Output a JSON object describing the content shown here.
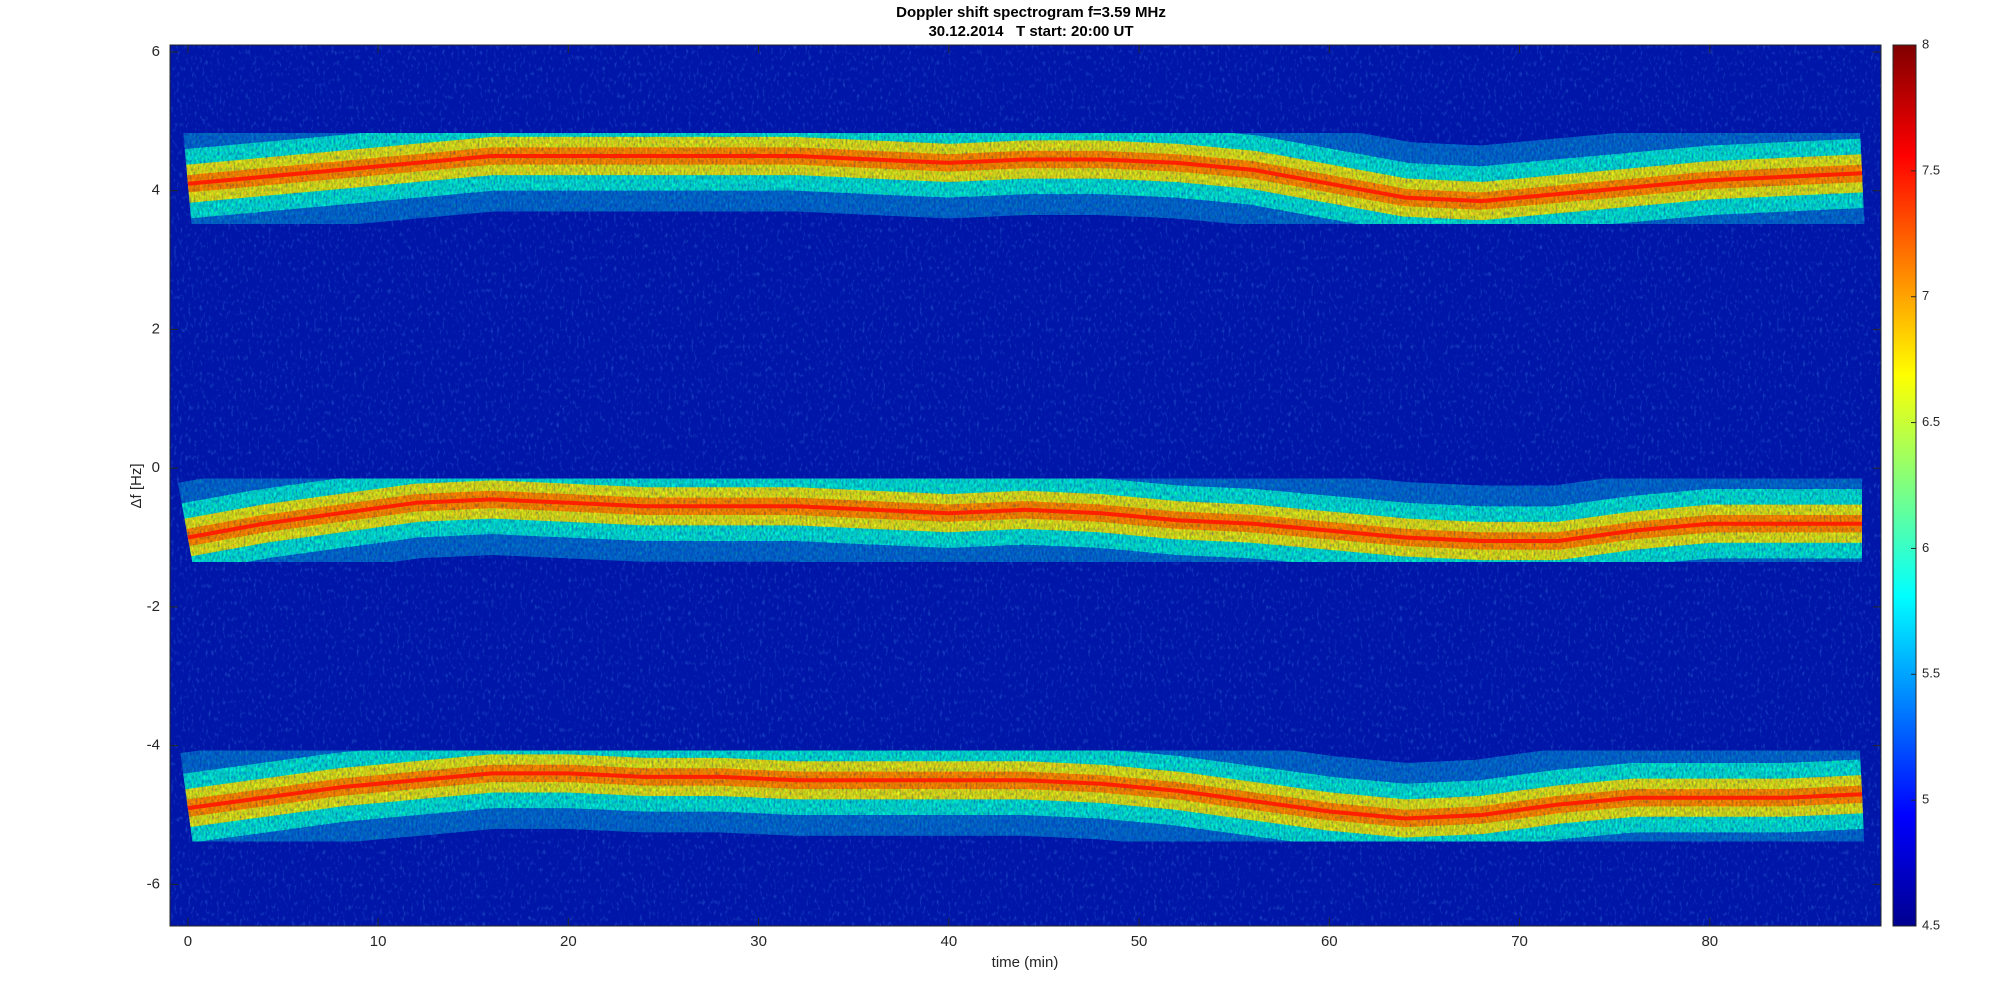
{
  "chart_data": {
    "type": "spectrogram",
    "title": "Doppler shift spectrogram f=3.59 MHz",
    "subtitle": "30.12.2014   T start: 20:00 UT",
    "x_label": "time (min)",
    "y_label": "Δf [Hz]",
    "x": [
      0,
      4,
      8,
      12,
      16,
      20,
      24,
      28,
      32,
      36,
      40,
      44,
      48,
      52,
      56,
      60,
      64,
      68,
      72,
      76,
      80,
      84,
      88
    ],
    "series": [
      {
        "color": "#ff2000",
        "values": [
          4.1,
          4.2,
          4.3,
          4.4,
          4.5,
          4.5,
          4.5,
          4.5,
          4.5,
          4.45,
          4.4,
          4.45,
          4.45,
          4.4,
          4.3,
          4.1,
          3.9,
          3.85,
          3.95,
          4.05,
          4.15,
          4.2,
          4.25
        ]
      },
      {
        "color": "#ff2000",
        "values": [
          -1.0,
          -0.8,
          -0.65,
          -0.5,
          -0.45,
          -0.5,
          -0.55,
          -0.55,
          -0.55,
          -0.6,
          -0.65,
          -0.6,
          -0.65,
          -0.75,
          -0.8,
          -0.9,
          -1.0,
          -1.05,
          -1.05,
          -0.9,
          -0.8,
          -0.8,
          -0.8
        ]
      },
      {
        "color": "#ff2000",
        "values": [
          -4.9,
          -4.75,
          -4.6,
          -4.5,
          -4.4,
          -4.4,
          -4.45,
          -4.45,
          -4.5,
          -4.5,
          -4.5,
          -4.5,
          -4.55,
          -4.65,
          -4.8,
          -4.95,
          -5.05,
          -5.0,
          -4.85,
          -4.75,
          -4.75,
          -4.75,
          -4.7
        ]
      }
    ],
    "xlim": [
      -0.94,
      89
    ],
    "ylim": [
      -6.6,
      6.1
    ],
    "xticks": [
      0,
      10,
      20,
      30,
      40,
      50,
      60,
      70,
      80
    ],
    "yticks": [
      -6,
      -4,
      -2,
      0,
      2,
      4,
      6
    ],
    "clim": [
      4.5,
      8
    ],
    "cticks": [
      4.5,
      5,
      5.5,
      6,
      6.5,
      7,
      7.5,
      8
    ],
    "colormap": "jet",
    "background": "#0016a8"
  }
}
